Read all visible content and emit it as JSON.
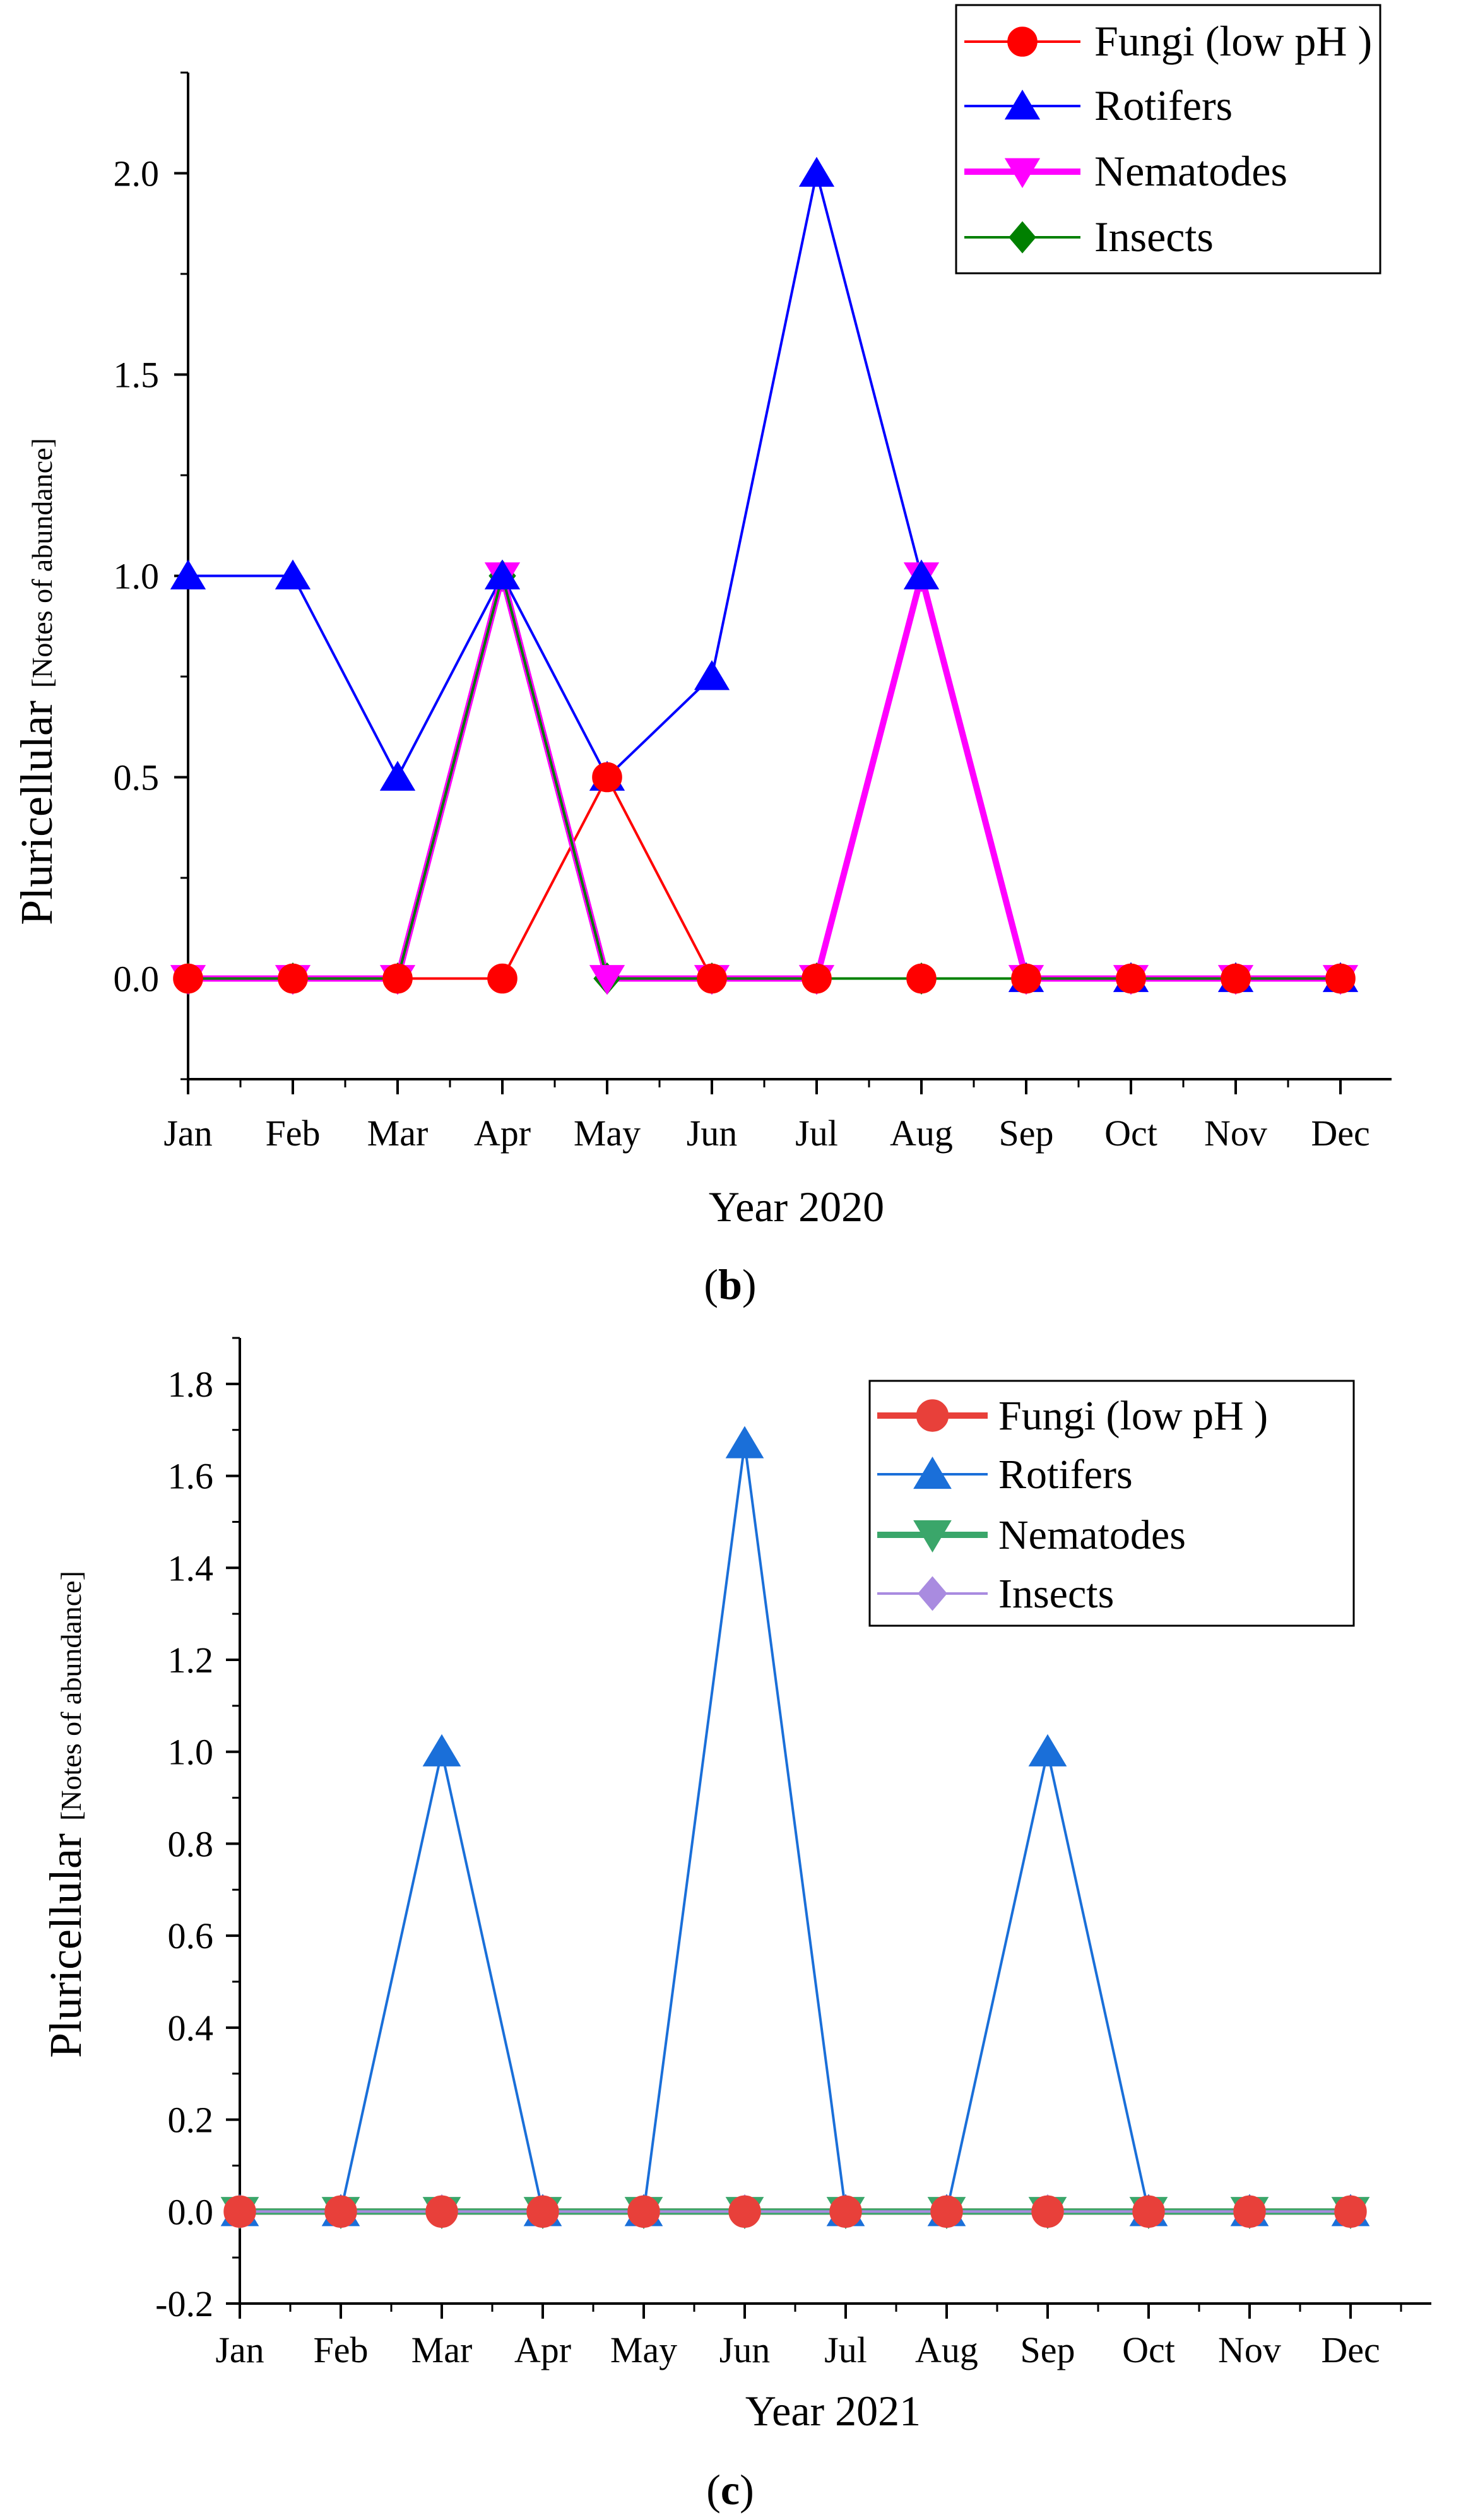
{
  "chart_data": [
    {
      "type": "line",
      "panel_label": "b",
      "xlabel": "Year 2020",
      "ylabel": "Pluricellular",
      "ylabel_sub": "[Notes of abundance]",
      "categories": [
        "Jan",
        "Feb",
        "Mar",
        "Apr",
        "May",
        "Jun",
        "Jul",
        "Aug",
        "Sep",
        "Oct",
        "Nov",
        "Dec"
      ],
      "ylim": [
        -0.25,
        2.25
      ],
      "yticks": [
        "0.0",
        "0.5",
        "1.0",
        "1.5",
        "2.0"
      ],
      "legend_position": "top-right",
      "series": [
        {
          "name": "Fungi (low pH )",
          "marker": "circle",
          "color": "#ff0000",
          "values": [
            0,
            0,
            0,
            0,
            0.5,
            0,
            0,
            0,
            0,
            0,
            0,
            0
          ]
        },
        {
          "name": "Rotifers",
          "marker": "triangle-up",
          "color": "#0000ff",
          "values": [
            1,
            1,
            0.5,
            1,
            0.5,
            0.75,
            2,
            1,
            0,
            0,
            0,
            0
          ]
        },
        {
          "name": "Nematodes",
          "marker": "triangle-down",
          "color": "#ff00ff",
          "values": [
            0,
            0,
            0,
            1,
            0,
            0,
            0,
            1,
            0,
            0,
            0,
            0
          ]
        },
        {
          "name": "Insects",
          "marker": "diamond",
          "color": "#008000",
          "values": [
            0,
            0,
            0,
            1,
            0,
            0,
            0,
            0,
            0,
            0,
            0,
            0
          ]
        }
      ]
    },
    {
      "type": "line",
      "panel_label": "c",
      "xlabel": "Year 2021",
      "ylabel": "Pluricellular",
      "ylabel_sub": "[Notes of abundance]",
      "categories": [
        "Jan",
        "Feb",
        "Mar",
        "Apr",
        "May",
        "Jun",
        "Jul",
        "Aug",
        "Sep",
        "Oct",
        "Nov",
        "Dec"
      ],
      "ylim": [
        -0.2,
        1.9
      ],
      "yticks": [
        "-0.2",
        "0.0",
        "0.2",
        "0.4",
        "0.6",
        "0.8",
        "1.0",
        "1.2",
        "1.4",
        "1.6",
        "1.8"
      ],
      "legend_position": "top-right",
      "series": [
        {
          "name": "Fungi (low pH )",
          "marker": "circle",
          "color": "#e8403a",
          "values": [
            0,
            0,
            0,
            0,
            0,
            0,
            0,
            0,
            0,
            0,
            0,
            0
          ]
        },
        {
          "name": "Rotifers",
          "marker": "triangle-up",
          "color": "#1a6fd9",
          "values": [
            0,
            0,
            1,
            0,
            0,
            1.67,
            0,
            0,
            1,
            0,
            0,
            0
          ]
        },
        {
          "name": "Nematodes",
          "marker": "triangle-down",
          "color": "#3aa66a",
          "values": [
            0,
            0,
            0,
            0,
            0,
            0,
            0,
            0,
            0,
            0,
            0,
            0
          ]
        },
        {
          "name": "Insects",
          "marker": "diamond",
          "color": "#a98be0",
          "values": [
            0,
            0,
            0,
            0,
            0,
            0,
            0,
            0,
            0,
            0,
            0,
            0
          ]
        }
      ]
    }
  ]
}
